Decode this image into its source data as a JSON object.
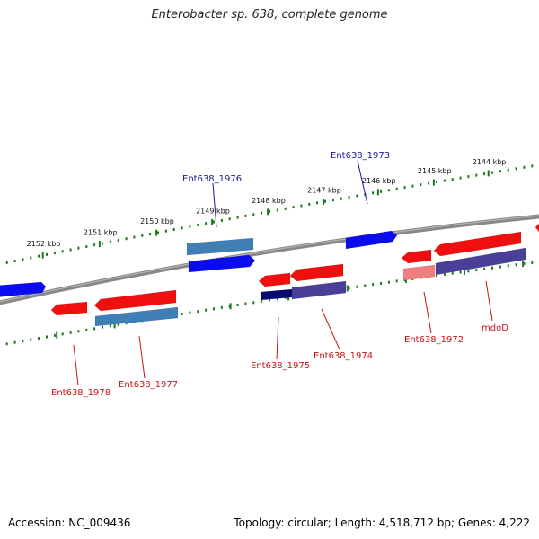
{
  "title": "Enterobacter sp. 638, complete genome",
  "footer": {
    "accession": "Accession: NC_009436",
    "summary": "Topology: circular; Length: 4,518,712 bp; Genes: 4,222"
  },
  "colors": {
    "forward": "#0b0bf0",
    "forward_alt": "#3f7fb6",
    "reverse": "#ef0f0f",
    "reverse_light": "#f08080",
    "purple": "#4a3f96",
    "navy": "#0a0a6e",
    "label_blue": "#1616a0",
    "label_red": "#c81414",
    "ruler": "#1a7a1a",
    "backbone": "#808080"
  },
  "ruler_labels": [
    "2152 kbp",
    "2151 kbp",
    "2150 kbp",
    "2149 kbp",
    "2148 kbp",
    "2147 kbp",
    "2146 kbp",
    "2145 kbp",
    "2144 kbp"
  ],
  "gene_labels": {
    "g1976": "Ent638_1976",
    "g1973": "Ent638_1973",
    "g1978": "Ent638_1978",
    "g1977": "Ent638_1977",
    "g1975": "Ent638_1975",
    "g1974": "Ent638_1974",
    "g1972": "Ent638_1972",
    "mdoD": "mdoD"
  }
}
